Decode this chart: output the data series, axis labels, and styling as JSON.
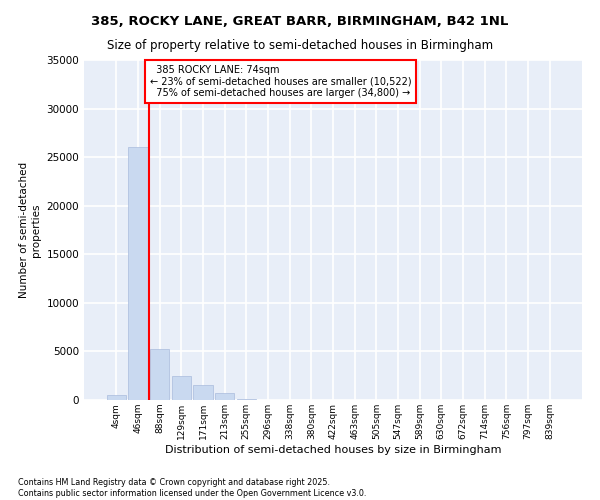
{
  "title1": "385, ROCKY LANE, GREAT BARR, BIRMINGHAM, B42 1NL",
  "title2": "Size of property relative to semi-detached houses in Birmingham",
  "xlabel": "Distribution of semi-detached houses by size in Birmingham",
  "ylabel": "Number of semi-detached\nproperties",
  "bin_labels": [
    "4sqm",
    "46sqm",
    "88sqm",
    "129sqm",
    "171sqm",
    "213sqm",
    "255sqm",
    "296sqm",
    "338sqm",
    "380sqm",
    "422sqm",
    "463sqm",
    "505sqm",
    "547sqm",
    "589sqm",
    "630sqm",
    "672sqm",
    "714sqm",
    "756sqm",
    "797sqm",
    "839sqm"
  ],
  "bar_values": [
    500,
    26000,
    5200,
    2500,
    1500,
    700,
    100,
    20,
    0,
    0,
    0,
    0,
    0,
    0,
    0,
    0,
    0,
    0,
    0,
    0,
    0
  ],
  "bar_color": "#c9d9f0",
  "bar_edge_color": "#aabbdd",
  "vline_color": "red",
  "property_label": "385 ROCKY LANE: 74sqm",
  "smaller_pct": "23% of semi-detached houses are smaller (10,522)",
  "larger_pct": "75% of semi-detached houses are larger (34,800)",
  "ylim": [
    0,
    35000
  ],
  "yticks": [
    0,
    5000,
    10000,
    15000,
    20000,
    25000,
    30000,
    35000
  ],
  "bg_color": "#e8eef8",
  "grid_color": "#ffffff",
  "footer": "Contains HM Land Registry data © Crown copyright and database right 2025.\nContains public sector information licensed under the Open Government Licence v3.0.",
  "annotation_box_color": "white",
  "annotation_box_edgecolor": "red"
}
